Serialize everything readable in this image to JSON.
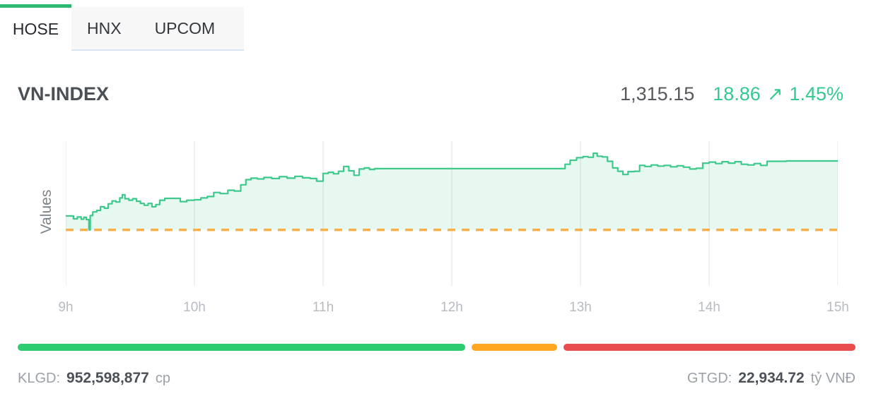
{
  "tabs": {
    "items": [
      {
        "label": "HOSE",
        "active": true
      },
      {
        "label": "HNX",
        "active": false
      },
      {
        "label": "UPCOM",
        "active": false
      }
    ]
  },
  "header": {
    "index_name": "VN-INDEX",
    "last_value": "1,315.15",
    "change": "18.86",
    "change_arrow": "↗",
    "change_pct": "1.45%",
    "up_color": "#35c98f"
  },
  "chart_data": {
    "type": "area",
    "title": "VN-INDEX intraday",
    "ylabel": "Values",
    "x_ticks": [
      "9h",
      "10h",
      "11h",
      "12h",
      "13h",
      "14h",
      "15h"
    ],
    "x_range": [
      9,
      15
    ],
    "y_range": [
      1281,
      1320.5
    ],
    "reference_value": 1296.29,
    "grid": "vertical",
    "legend": "none",
    "line_color": "#3dc98c",
    "fill_color": "rgba(61,201,140,0.13)",
    "reference_color": "#fcaf45",
    "grid_color": "#ececec",
    "interpolation": "step-after",
    "series": [
      {
        "name": "VN-INDEX",
        "points": [
          [
            9.0,
            1300.1
          ],
          [
            9.04,
            1300.1
          ],
          [
            9.06,
            1299.3
          ],
          [
            9.09,
            1299.8
          ],
          [
            9.12,
            1299.2
          ],
          [
            9.14,
            1299.7
          ],
          [
            9.16,
            1299.1
          ],
          [
            9.18,
            1296.3
          ],
          [
            9.19,
            1300.2
          ],
          [
            9.21,
            1301.2
          ],
          [
            9.24,
            1301.6
          ],
          [
            9.27,
            1302.6
          ],
          [
            9.3,
            1302.2
          ],
          [
            9.33,
            1303.4
          ],
          [
            9.36,
            1304.2
          ],
          [
            9.39,
            1303.9
          ],
          [
            9.42,
            1305.0
          ],
          [
            9.44,
            1305.9
          ],
          [
            9.46,
            1304.8
          ],
          [
            9.49,
            1304.4
          ],
          [
            9.52,
            1304.8
          ],
          [
            9.55,
            1304.1
          ],
          [
            9.58,
            1303.5
          ],
          [
            9.61,
            1303.0
          ],
          [
            9.64,
            1303.5
          ],
          [
            9.67,
            1302.6
          ],
          [
            9.7,
            1303.2
          ],
          [
            9.73,
            1304.4
          ],
          [
            9.77,
            1304.9
          ],
          [
            9.84,
            1304.9
          ],
          [
            9.89,
            1304.0
          ],
          [
            9.94,
            1304.4
          ],
          [
            10.0,
            1304.5
          ],
          [
            10.05,
            1305.0
          ],
          [
            10.1,
            1305.4
          ],
          [
            10.15,
            1306.5
          ],
          [
            10.2,
            1306.2
          ],
          [
            10.26,
            1307.1
          ],
          [
            10.31,
            1306.9
          ],
          [
            10.36,
            1308.6
          ],
          [
            10.4,
            1310.0
          ],
          [
            10.44,
            1310.4
          ],
          [
            10.49,
            1310.2
          ],
          [
            10.54,
            1310.6
          ],
          [
            10.6,
            1310.3
          ],
          [
            10.66,
            1310.8
          ],
          [
            10.72,
            1310.4
          ],
          [
            10.78,
            1310.9
          ],
          [
            10.84,
            1310.5
          ],
          [
            10.9,
            1310.3
          ],
          [
            10.95,
            1309.6
          ],
          [
            11.0,
            1311.7
          ],
          [
            11.04,
            1312.0
          ],
          [
            11.08,
            1311.6
          ],
          [
            11.12,
            1312.3
          ],
          [
            11.16,
            1313.6
          ],
          [
            11.2,
            1312.4
          ],
          [
            11.24,
            1311.2
          ],
          [
            11.28,
            1312.9
          ],
          [
            11.32,
            1313.2
          ],
          [
            11.36,
            1312.8
          ],
          [
            11.4,
            1313.0
          ],
          [
            11.5,
            1313.0
          ],
          [
            12.85,
            1313.0
          ],
          [
            12.88,
            1314.2
          ],
          [
            12.92,
            1315.3
          ],
          [
            12.97,
            1316.0
          ],
          [
            13.02,
            1316.3
          ],
          [
            13.06,
            1316.1
          ],
          [
            13.1,
            1317.2
          ],
          [
            13.13,
            1316.4
          ],
          [
            13.17,
            1316.2
          ],
          [
            13.21,
            1315.0
          ],
          [
            13.25,
            1313.2
          ],
          [
            13.29,
            1312.3
          ],
          [
            13.33,
            1311.4
          ],
          [
            13.37,
            1312.2
          ],
          [
            13.42,
            1312.3
          ],
          [
            13.46,
            1313.9
          ],
          [
            13.5,
            1313.6
          ],
          [
            13.55,
            1314.0
          ],
          [
            13.6,
            1313.7
          ],
          [
            13.65,
            1313.9
          ],
          [
            13.7,
            1313.5
          ],
          [
            13.75,
            1313.8
          ],
          [
            13.8,
            1313.4
          ],
          [
            13.85,
            1312.9
          ],
          [
            13.9,
            1313.1
          ],
          [
            13.95,
            1314.5
          ],
          [
            14.0,
            1314.8
          ],
          [
            14.05,
            1314.4
          ],
          [
            14.1,
            1314.9
          ],
          [
            14.15,
            1314.5
          ],
          [
            14.2,
            1314.9
          ],
          [
            14.25,
            1314.2
          ],
          [
            14.3,
            1314.0
          ],
          [
            14.35,
            1314.4
          ],
          [
            14.4,
            1313.9
          ],
          [
            14.45,
            1315.0
          ],
          [
            14.6,
            1315.1
          ],
          [
            15.0,
            1315.15
          ]
        ]
      }
    ]
  },
  "breadth_bar": {
    "segments": [
      {
        "name": "advancing",
        "color": "#2ecc71",
        "pct": 53.4
      },
      {
        "name": "unchanged",
        "color": "#ffa722",
        "pct": 10.2
      },
      {
        "name": "declining",
        "color": "#ea4d4d",
        "pct": 34.9
      }
    ]
  },
  "stats": {
    "volume_label": "KLGD:",
    "volume_value": "952,598,877",
    "volume_unit": "cp",
    "turnover_label": "GTGD:",
    "turnover_value": "22,934.72",
    "turnover_unit": "tỷ VNĐ"
  }
}
